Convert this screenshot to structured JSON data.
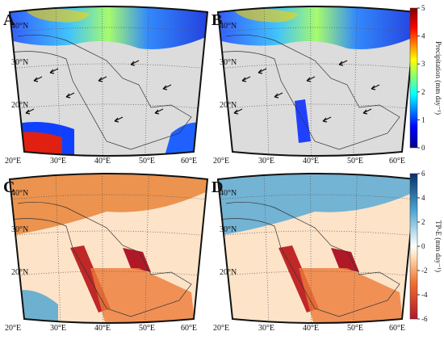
{
  "panels": [
    {
      "label": "A",
      "lat_labels": [
        "40°N",
        "30°N",
        "20°N"
      ],
      "lon_labels": [
        "20°E",
        "30°E",
        "40°E",
        "50°E",
        "60°E"
      ]
    },
    {
      "label": "B",
      "lat_labels": [
        "40°N",
        "30°N",
        "20°N"
      ],
      "lon_labels": [
        "20°E",
        "30°E",
        "40°E",
        "50°E",
        "60°E"
      ]
    },
    {
      "label": "C",
      "lat_labels": [
        "40°N",
        "30°N",
        "20°N"
      ],
      "lon_labels": [
        "20°E",
        "30°E",
        "40°E",
        "50°E",
        "60°E"
      ]
    },
    {
      "label": "D",
      "lat_labels": [
        "40°N",
        "30°N",
        "20°N"
      ],
      "lon_labels": [
        "20°E",
        "30°E",
        "40°E",
        "50°E",
        "60°E"
      ]
    }
  ],
  "colorbars": [
    {
      "title": "Precipitation (mm day⁻¹)",
      "ticks": [
        0,
        1,
        2,
        3,
        4,
        5
      ],
      "lim": [
        0,
        5
      ]
    },
    {
      "title": "TP-E (mm day⁻¹)",
      "ticks": [
        -6,
        -4,
        -2,
        0,
        2,
        4,
        6
      ],
      "lim": [
        -6,
        6
      ]
    }
  ]
}
